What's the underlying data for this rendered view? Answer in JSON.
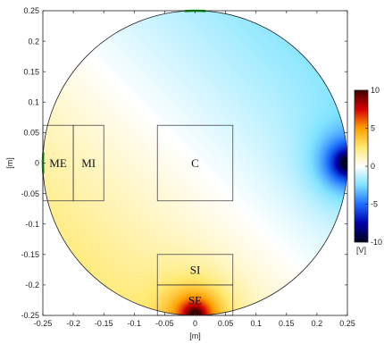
{
  "chart_data": {
    "type": "heatmap",
    "title": "",
    "xlabel": "[m]",
    "ylabel": "[m]",
    "xlim": [
      -0.25,
      0.25
    ],
    "ylim": [
      -0.25,
      0.25
    ],
    "xticks": [
      "-0.25",
      "-0.2",
      "-0.15",
      "-0.1",
      "-0.05",
      "0",
      "0.05",
      "0.1",
      "0.15",
      "0.2",
      "0.25"
    ],
    "yticks": [
      "0.25",
      "0.2",
      "0.15",
      "0.1",
      "0.05",
      "0",
      "-0.05",
      "-0.1",
      "-0.15",
      "-0.2",
      "-0.25"
    ],
    "domain": {
      "shape": "circle",
      "center": [
        0,
        0
      ],
      "radius": 0.25
    },
    "colorbar": {
      "label": "[V]",
      "range": [
        -10,
        10
      ],
      "ticks": [
        "10",
        "5",
        "0",
        "-5",
        "-10"
      ],
      "colormap": [
        "#00001e",
        "#0000aa",
        "#1e6eff",
        "#7fe3ff",
        "#ffffff",
        "#ffe970",
        "#ffa000",
        "#d60000",
        "#3c0000"
      ]
    },
    "field": {
      "sources": [
        {
          "name": "SE-electrode",
          "x": 0.0,
          "y": -0.25,
          "value": 10
        },
        {
          "name": "right-electrode",
          "x": 0.25,
          "y": 0.0,
          "value": -10
        },
        {
          "name": "top-electrode",
          "x": 0.0,
          "y": 0.25,
          "value": 0
        },
        {
          "name": "left-electrode",
          "x": -0.25,
          "y": 0.0,
          "value": 0
        }
      ],
      "background_gradient": {
        "low_corner": [
          0.2,
          0.2
        ],
        "high_corner": [
          -0.2,
          -0.2
        ],
        "min": -2.5,
        "max": 2.5
      }
    },
    "regions": [
      {
        "label": "ME",
        "x0": -0.25,
        "x1": -0.2,
        "y0": -0.062,
        "y1": 0.062
      },
      {
        "label": "MI",
        "x0": -0.2,
        "x1": -0.15,
        "y0": -0.062,
        "y1": 0.062
      },
      {
        "label": "C",
        "x0": -0.062,
        "x1": 0.062,
        "y0": -0.062,
        "y1": 0.062
      },
      {
        "label": "SI",
        "x0": -0.062,
        "x1": 0.062,
        "y0": -0.2,
        "y1": -0.15
      },
      {
        "label": "SE",
        "x0": -0.062,
        "x1": 0.062,
        "y0": -0.25,
        "y1": -0.2
      }
    ],
    "electrodes": [
      {
        "name": "top-electrode",
        "color": "#00a000",
        "x": 0.0,
        "y": 0.25,
        "half_span_deg": 4
      },
      {
        "name": "left-electrode",
        "color": "#00a000",
        "x": -0.25,
        "y": 0.0,
        "half_span_deg": 4
      }
    ]
  }
}
